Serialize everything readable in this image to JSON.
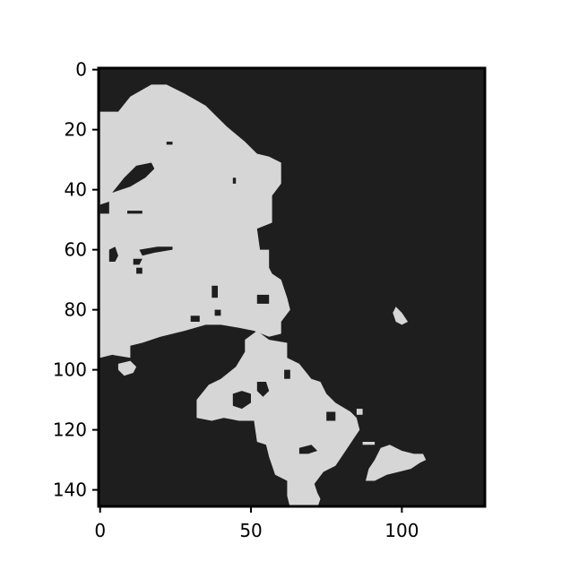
{
  "chart_data": {
    "type": "heatmap",
    "title": "",
    "xlabel": "",
    "ylabel": "",
    "grid": false,
    "image_width": 128,
    "image_height": 146,
    "xlim": [
      -0.5,
      127.5
    ],
    "ylim": [
      145.5,
      -0.5
    ],
    "xticks": [
      0,
      50,
      100
    ],
    "xtick_labels": [
      "0",
      "50",
      "100"
    ],
    "yticks": [
      0,
      20,
      40,
      60,
      80,
      100,
      120,
      140
    ],
    "ytick_labels": [
      "0",
      "20",
      "40",
      "60",
      "80",
      "100",
      "120",
      "140"
    ],
    "colors": {
      "background": "#1e1e1e",
      "foreground": "#d6d6d6",
      "axes": "#000000"
    },
    "foreground_regions": [
      {
        "name": "main-mass",
        "points": [
          [
            0,
            14
          ],
          [
            6,
            14
          ],
          [
            10,
            9
          ],
          [
            17,
            5
          ],
          [
            22,
            5
          ],
          [
            28,
            8
          ],
          [
            35,
            12
          ],
          [
            42,
            19
          ],
          [
            48,
            24
          ],
          [
            52,
            28
          ],
          [
            56,
            29
          ],
          [
            60,
            31
          ],
          [
            60,
            38
          ],
          [
            57,
            42
          ],
          [
            57,
            51
          ],
          [
            52,
            53
          ],
          [
            53,
            60
          ],
          [
            56,
            60
          ],
          [
            56,
            66
          ],
          [
            57,
            68
          ],
          [
            60,
            70
          ],
          [
            62,
            76
          ],
          [
            63,
            80
          ],
          [
            60,
            84
          ],
          [
            60,
            88
          ],
          [
            56,
            89
          ],
          [
            51,
            87
          ],
          [
            46,
            86
          ],
          [
            40,
            85
          ],
          [
            35,
            85
          ],
          [
            28,
            87
          ],
          [
            20,
            89
          ],
          [
            14,
            91
          ],
          [
            10,
            92
          ],
          [
            10,
            96
          ],
          [
            4,
            95
          ],
          [
            0,
            96
          ]
        ]
      },
      {
        "name": "lower-cluster",
        "points": [
          [
            52,
            87
          ],
          [
            56,
            90
          ],
          [
            62,
            91
          ],
          [
            62,
            96
          ],
          [
            66,
            98
          ],
          [
            70,
            103
          ],
          [
            73,
            104
          ],
          [
            75,
            108
          ],
          [
            78,
            111
          ],
          [
            83,
            114
          ],
          [
            85,
            116
          ],
          [
            86,
            120
          ],
          [
            84,
            123
          ],
          [
            82,
            126
          ],
          [
            80,
            129
          ],
          [
            78,
            132
          ],
          [
            74,
            134
          ],
          [
            71,
            138
          ],
          [
            72,
            141
          ],
          [
            73,
            143
          ],
          [
            72,
            146
          ],
          [
            63,
            146
          ],
          [
            62,
            142
          ],
          [
            62,
            137
          ],
          [
            58,
            135
          ],
          [
            56,
            129
          ],
          [
            55,
            125
          ],
          [
            52,
            124
          ],
          [
            51,
            117
          ],
          [
            46,
            117
          ],
          [
            41,
            116
          ],
          [
            37,
            117
          ],
          [
            32,
            116
          ],
          [
            32,
            110
          ],
          [
            36,
            105
          ],
          [
            40,
            103
          ],
          [
            45,
            99
          ],
          [
            48,
            94
          ],
          [
            48,
            90
          ]
        ]
      },
      {
        "name": "blob-small-left",
        "points": [
          [
            10,
            97
          ],
          [
            12,
            99
          ],
          [
            11,
            101
          ],
          [
            8,
            102
          ],
          [
            6,
            100
          ],
          [
            6,
            98
          ]
        ]
      },
      {
        "name": "blob-right-speck",
        "points": [
          [
            98,
            79
          ],
          [
            100,
            81
          ],
          [
            102,
            84
          ],
          [
            100,
            85
          ],
          [
            98,
            84
          ],
          [
            97,
            81
          ]
        ]
      },
      {
        "name": "blob-right-triangle",
        "points": [
          [
            93,
            126
          ],
          [
            96,
            125
          ],
          [
            100,
            127
          ],
          [
            104,
            128
          ],
          [
            107,
            128
          ],
          [
            108,
            130
          ],
          [
            106,
            131
          ],
          [
            103,
            133
          ],
          [
            99,
            134
          ],
          [
            95,
            135
          ],
          [
            91,
            137
          ],
          [
            88,
            137
          ],
          [
            89,
            133
          ],
          [
            91,
            130
          ]
        ]
      },
      {
        "name": "blob-right-bar",
        "points": [
          [
            87,
            124
          ],
          [
            91,
            124
          ],
          [
            91,
            125
          ],
          [
            87,
            125
          ]
        ]
      },
      {
        "name": "blob-right-chip",
        "points": [
          [
            85,
            113
          ],
          [
            87,
            113
          ],
          [
            87,
            115
          ],
          [
            85,
            115
          ]
        ]
      }
    ],
    "background_holes": [
      {
        "name": "hole-upper-left",
        "points": [
          [
            4,
            41
          ],
          [
            8,
            36
          ],
          [
            12,
            32
          ],
          [
            17,
            31
          ],
          [
            18,
            33
          ],
          [
            15,
            36
          ],
          [
            10,
            39
          ]
        ]
      },
      {
        "name": "hole-notch",
        "points": [
          [
            0,
            45
          ],
          [
            3,
            44
          ],
          [
            3,
            48
          ],
          [
            0,
            48
          ]
        ]
      },
      {
        "name": "hole-bar-1",
        "points": [
          [
            3,
            60
          ],
          [
            5,
            59
          ],
          [
            6,
            62
          ],
          [
            5,
            64
          ],
          [
            3,
            64
          ]
        ]
      },
      {
        "name": "hole-bar-2",
        "points": [
          [
            13,
            60
          ],
          [
            19,
            59
          ],
          [
            24,
            59
          ],
          [
            24,
            60
          ],
          [
            18,
            61
          ],
          [
            14,
            62
          ]
        ]
      },
      {
        "name": "hole-bar-3",
        "points": [
          [
            11,
            63
          ],
          [
            14,
            63
          ],
          [
            13,
            65
          ],
          [
            11,
            65
          ]
        ]
      },
      {
        "name": "hole-speck-1",
        "points": [
          [
            12,
            66
          ],
          [
            14,
            66
          ],
          [
            14,
            68
          ],
          [
            12,
            68
          ]
        ]
      },
      {
        "name": "hole-speck-2",
        "points": [
          [
            9,
            47
          ],
          [
            14,
            47
          ],
          [
            14,
            48
          ],
          [
            9,
            48
          ]
        ]
      },
      {
        "name": "hole-mid-1",
        "points": [
          [
            37,
            72
          ],
          [
            39,
            72
          ],
          [
            39,
            76
          ],
          [
            37,
            76
          ]
        ]
      },
      {
        "name": "hole-mid-2",
        "points": [
          [
            52,
            75
          ],
          [
            56,
            75
          ],
          [
            56,
            78
          ],
          [
            52,
            78
          ]
        ]
      },
      {
        "name": "hole-mid-3",
        "points": [
          [
            38,
            80
          ],
          [
            40,
            80
          ],
          [
            40,
            82
          ],
          [
            38,
            82
          ]
        ]
      },
      {
        "name": "hole-mid-4",
        "points": [
          [
            30,
            82
          ],
          [
            33,
            82
          ],
          [
            33,
            84
          ],
          [
            30,
            84
          ]
        ]
      },
      {
        "name": "hole-ring",
        "points": [
          [
            44,
            108
          ],
          [
            47,
            107
          ],
          [
            50,
            108
          ],
          [
            50,
            111
          ],
          [
            47,
            113
          ],
          [
            44,
            112
          ]
        ]
      },
      {
        "name": "hole-ring-2",
        "points": [
          [
            52,
            104
          ],
          [
            55,
            104
          ],
          [
            56,
            107
          ],
          [
            54,
            109
          ],
          [
            52,
            107
          ]
        ]
      },
      {
        "name": "hole-lower-1",
        "points": [
          [
            66,
            126
          ],
          [
            70,
            125
          ],
          [
            72,
            127
          ],
          [
            69,
            128
          ],
          [
            66,
            128
          ]
        ]
      },
      {
        "name": "hole-lower-2",
        "points": [
          [
            75,
            114
          ],
          [
            78,
            114
          ],
          [
            78,
            117
          ],
          [
            75,
            117
          ]
        ]
      },
      {
        "name": "hole-lower-3",
        "points": [
          [
            61,
            100
          ],
          [
            63,
            100
          ],
          [
            63,
            103
          ],
          [
            61,
            103
          ]
        ]
      },
      {
        "name": "hole-top-1",
        "points": [
          [
            22,
            24
          ],
          [
            24,
            24
          ],
          [
            24,
            25
          ],
          [
            22,
            25
          ]
        ]
      },
      {
        "name": "hole-top-2",
        "points": [
          [
            44,
            36
          ],
          [
            45,
            36
          ],
          [
            45,
            38
          ],
          [
            44,
            38
          ]
        ]
      }
    ]
  }
}
